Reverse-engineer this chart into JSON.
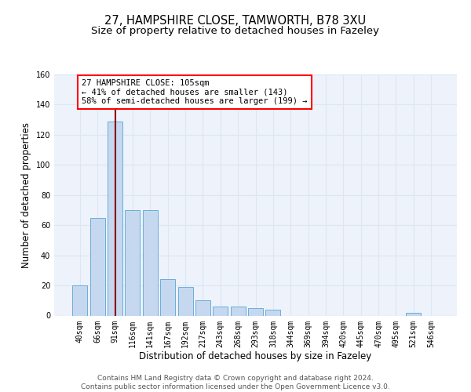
{
  "title1": "27, HAMPSHIRE CLOSE, TAMWORTH, B78 3XU",
  "title2": "Size of property relative to detached houses in Fazeley",
  "xlabel": "Distribution of detached houses by size in Fazeley",
  "ylabel": "Number of detached properties",
  "categories": [
    "40sqm",
    "66sqm",
    "91sqm",
    "116sqm",
    "141sqm",
    "167sqm",
    "192sqm",
    "217sqm",
    "243sqm",
    "268sqm",
    "293sqm",
    "318sqm",
    "344sqm",
    "369sqm",
    "394sqm",
    "420sqm",
    "445sqm",
    "470sqm",
    "495sqm",
    "521sqm",
    "546sqm"
  ],
  "values": [
    20,
    65,
    129,
    70,
    70,
    24,
    19,
    10,
    6,
    6,
    5,
    4,
    0,
    0,
    0,
    0,
    0,
    0,
    0,
    2,
    0
  ],
  "bar_color": "#c5d8f0",
  "bar_edge_color": "#6aaed6",
  "red_line_bin": 2,
  "annotation_text": "27 HAMPSHIRE CLOSE: 105sqm\n← 41% of detached houses are smaller (143)\n58% of semi-detached houses are larger (199) →",
  "annotation_box_color": "white",
  "annotation_box_edge_color": "red",
  "ylim": [
    0,
    160
  ],
  "yticks": [
    0,
    20,
    40,
    60,
    80,
    100,
    120,
    140,
    160
  ],
  "grid_color": "#dce6f5",
  "bg_color": "#edf2fb",
  "footer_text": "Contains HM Land Registry data © Crown copyright and database right 2024.\nContains public sector information licensed under the Open Government Licence v3.0.",
  "title_fontsize": 10.5,
  "subtitle_fontsize": 9.5,
  "xlabel_fontsize": 8.5,
  "ylabel_fontsize": 8.5,
  "tick_fontsize": 7,
  "footer_fontsize": 6.5,
  "annotation_fontsize": 7.5
}
